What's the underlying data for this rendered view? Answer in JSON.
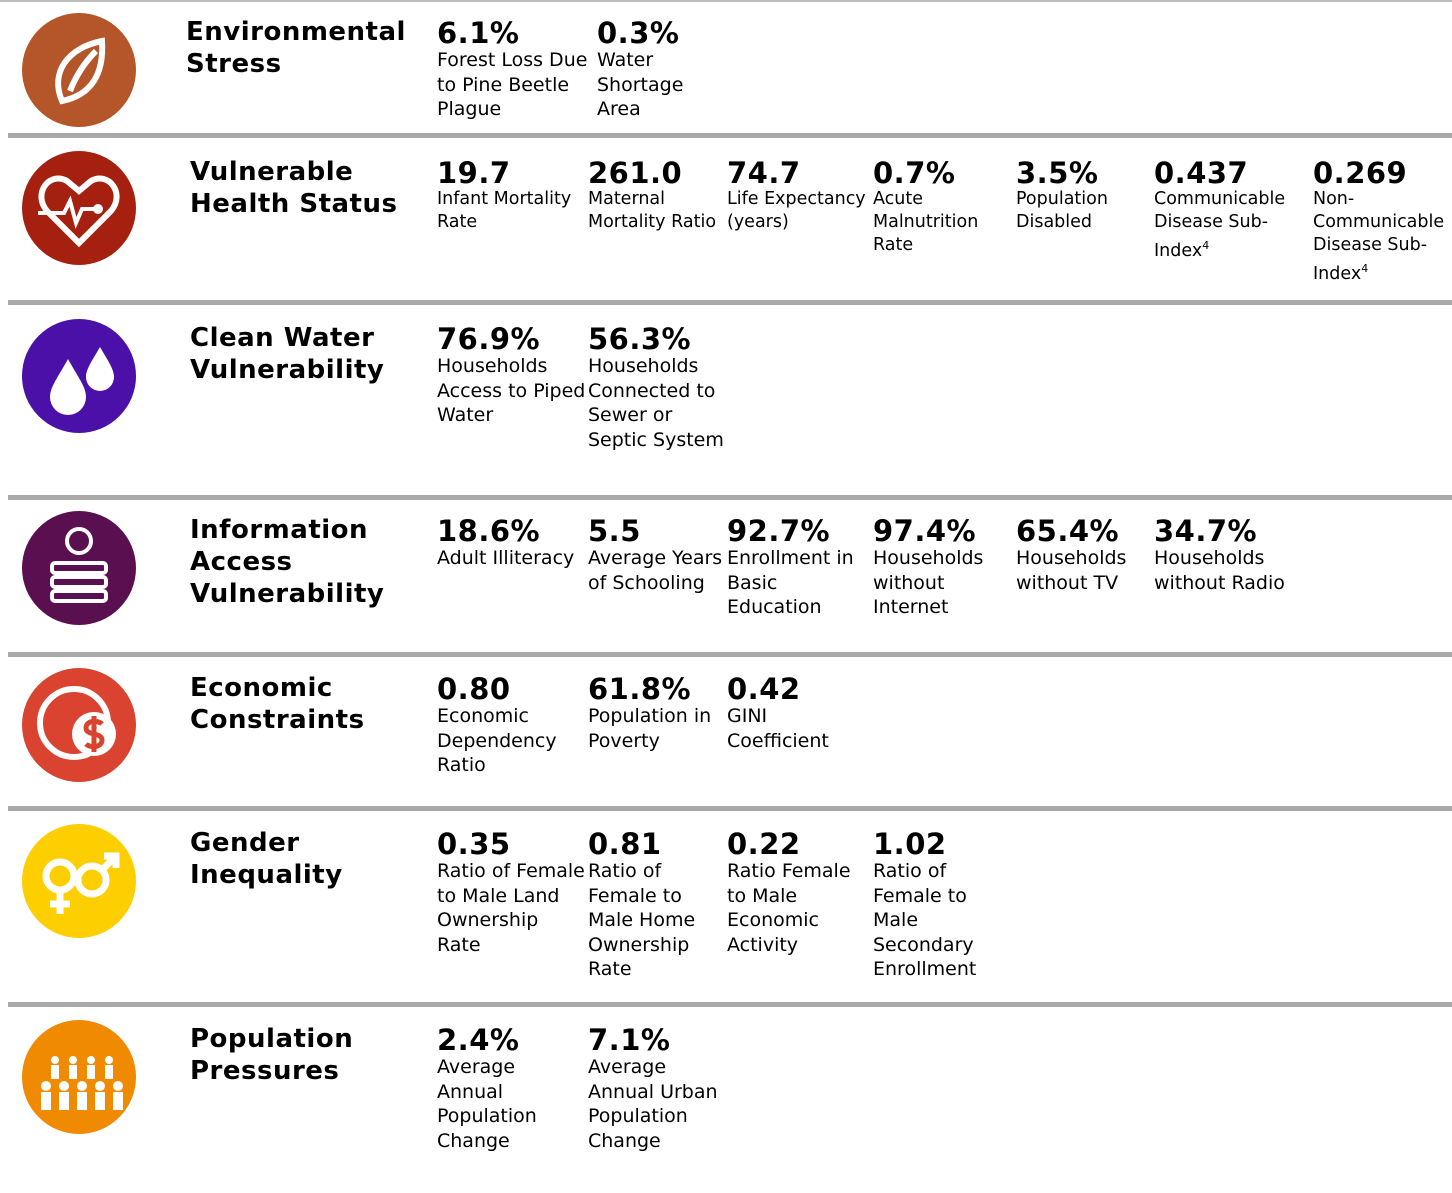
{
  "sections": [
    {
      "title": "Environmental Stress",
      "indicators": [
        {
          "value": "6.1%",
          "label": "Forest Loss Due to Pine Beetle Plague"
        },
        {
          "value": "0.3%",
          "label": "Water Shortage Area"
        }
      ]
    },
    {
      "title": "Vulnerable Health Status",
      "indicators": [
        {
          "value": "19.7",
          "label": "Infant Mortality Rate"
        },
        {
          "value": "261.0",
          "label": "Maternal Mortality Ratio"
        },
        {
          "value": "74.7",
          "label": "Life Expectancy (years)"
        },
        {
          "value": "0.7%",
          "label": "Acute Malnutrition Rate"
        },
        {
          "value": "3.5%",
          "label": "Population Disabled"
        },
        {
          "value": "0.437",
          "label": "Communicable Disease Sub-Index",
          "footnote": "4"
        },
        {
          "value": "0.269",
          "label": "Non-Communicable Disease Sub-Index",
          "footnote": "4"
        }
      ]
    },
    {
      "title": "Clean Water Vulnerability",
      "indicators": [
        {
          "value": "76.9%",
          "label": "Households Access to Piped Water"
        },
        {
          "value": "56.3%",
          "label": "Households Connected to Sewer or Septic System"
        }
      ]
    },
    {
      "title": "Information Access Vulnerability",
      "indicators": [
        {
          "value": "18.6%",
          "label": "Adult Illiteracy"
        },
        {
          "value": "5.5",
          "label": "Average Years of Schooling"
        },
        {
          "value": "92.7%",
          "label": "Enrollment in Basic Education"
        },
        {
          "value": "97.4%",
          "label": "Households without Internet"
        },
        {
          "value": "65.4%",
          "label": "Households without TV"
        },
        {
          "value": "34.7%",
          "label": "Households without Radio"
        }
      ]
    },
    {
      "title": "Economic Constraints",
      "indicators": [
        {
          "value": "0.80",
          "label": "Economic Dependency Ratio"
        },
        {
          "value": "61.8%",
          "label": "Population in Poverty"
        },
        {
          "value": "0.42",
          "label": "GINI Coefficient"
        }
      ]
    },
    {
      "title": "Gender Inequality",
      "indicators": [
        {
          "value": "0.35",
          "label": "Ratio of Female to Male Land Ownership Rate"
        },
        {
          "value": "0.81",
          "label": "Ratio of Female to Male Home Ownership Rate"
        },
        {
          "value": "0.22",
          "label": "Ratio Female to Male Economic Activity"
        },
        {
          "value": "1.02",
          "label": "Ratio of Female to Male Secondary Enrollment"
        }
      ]
    },
    {
      "title": "Population Pressures",
      "indicators": [
        {
          "value": "2.4%",
          "label": "Average Annual Population Change"
        },
        {
          "value": "7.1%",
          "label": "Average Annual Urban Population Change"
        }
      ]
    }
  ]
}
